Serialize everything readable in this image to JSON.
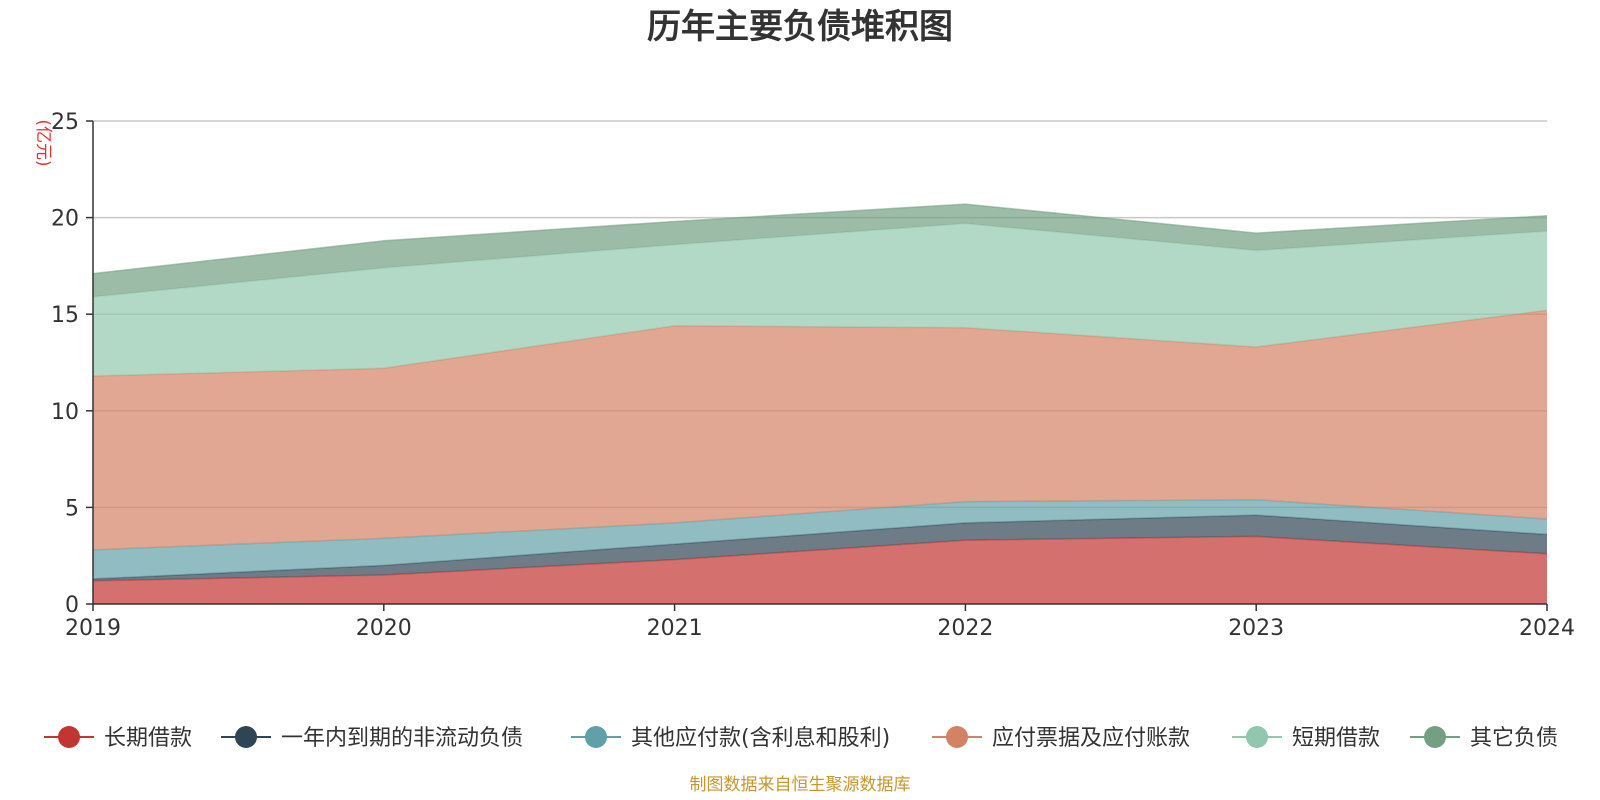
{
  "chart_data": {
    "type": "area",
    "stacked": true,
    "title": "历年主要负债堆积图",
    "ylabel": "(亿元)",
    "xlabel": "",
    "x": [
      "2019",
      "2020",
      "2021",
      "2022",
      "2023",
      "2024"
    ],
    "yticks": [
      "0",
      "5",
      "10",
      "15",
      "20",
      "25"
    ],
    "ylim": [
      0,
      25
    ],
    "grid": true,
    "legend_position": "bottom",
    "series": [
      {
        "name": "长期借款",
        "color": "#c23531",
        "values": [
          1.2,
          1.5,
          2.3,
          3.3,
          3.5,
          2.6
        ]
      },
      {
        "name": "一年内到期的非流动负债",
        "color": "#2f4554",
        "values": [
          0.1,
          0.5,
          0.8,
          0.9,
          1.1,
          1.0
        ]
      },
      {
        "name": "其他应付款(含利息和股利)",
        "color": "#61a0a8",
        "values": [
          1.5,
          1.4,
          1.1,
          1.1,
          0.8,
          0.8
        ]
      },
      {
        "name": "应付票据及应付账款",
        "color": "#d48265",
        "values": [
          9.0,
          8.8,
          10.2,
          9.0,
          7.9,
          10.8
        ]
      },
      {
        "name": "短期借款",
        "color": "#91c7ae",
        "values": [
          4.1,
          5.2,
          4.2,
          5.4,
          5.0,
          4.1
        ]
      },
      {
        "name": "其它负债",
        "color": "#749f83",
        "values": [
          1.2,
          1.4,
          1.2,
          1.0,
          0.9,
          0.8
        ]
      }
    ]
  },
  "footer": {
    "source": "制图数据来自恒生聚源数据库"
  }
}
